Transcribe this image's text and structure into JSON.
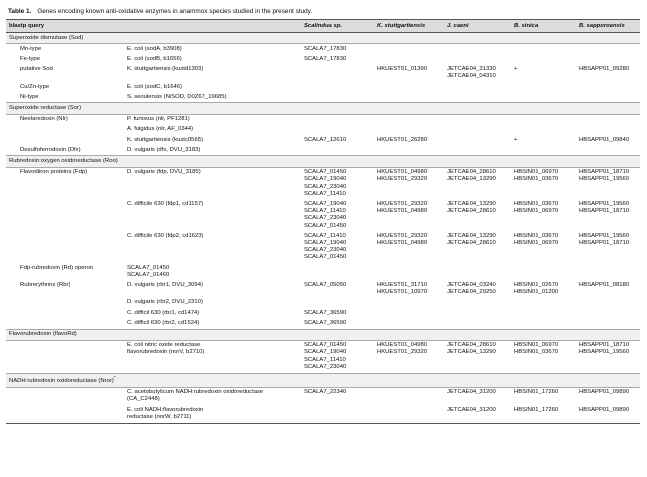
{
  "caption": {
    "label": "Table 1.",
    "text": "Genes encoding known anti-oxidative enzymes in anammox species studied in the present study."
  },
  "table": {
    "headers": [
      "blastp query",
      "Scalindua sp.",
      "K. stuttgartiensis",
      "J. caeni",
      "B. sinica",
      "B. sapporoensis"
    ],
    "rows": [
      {
        "section": "Superoxide dismutase (Sod)"
      },
      {
        "cells": [
          "Mn-type",
          "E. coli (sodA, b3908)",
          "SCALA7_17830",
          null,
          null,
          null,
          null
        ]
      },
      {
        "cells": [
          "Fe-type",
          "E. coli (sodB, b1656)",
          "SCALA7_17830",
          null,
          null,
          null,
          null
        ]
      },
      {
        "cells": [
          "putative Sod",
          "K. stuttgartiensis (kustd1303)",
          null,
          "HKUEST01_01390",
          [
            "JETCAE04_31330",
            "JETCAE04_04310"
          ],
          "+",
          "HBSAPP01_09280"
        ]
      },
      {
        "cells": [
          "Cu/Zn-type",
          "E. coli (sodC, b1646)",
          null,
          null,
          null,
          null,
          null
        ]
      },
      {
        "cells": [
          "Ni-type",
          "S. seoulensis (NiSOD, D0Z67_19685)",
          null,
          null,
          null,
          null,
          null
        ]
      },
      {
        "section": "Superoxide reductase (Sor)"
      },
      {
        "cells": [
          "Neelaredoxin (Nlr)",
          "P. furiosus (nlr, PF1281)",
          null,
          null,
          null,
          null,
          null
        ]
      },
      {
        "cells": [
          null,
          "A. fulgidus (nlr, AF_0344)",
          null,
          null,
          null,
          null,
          null
        ]
      },
      {
        "cells": [
          null,
          "K. stuttgartiensis (kustc0565)",
          "SCALA7_12610",
          "HKUEST01_26280",
          null,
          "+",
          "HBSAPP01_09840"
        ]
      },
      {
        "cells": [
          "Desulfoferrodoxin (Dfx)",
          "D. vulgaris (dfx, DVU_3183)",
          null,
          null,
          null,
          null,
          null
        ]
      },
      {
        "section": "Rubredoxin:oxygen oxidoreductase (Roo)"
      },
      {
        "cells": [
          "Flavodiiron proteins (Fdp)",
          "D. vulgaris (fdp, DVU_3185)",
          [
            "SCALA7_01450",
            "SCALA7_19040",
            "SCALA7_23040",
            "SCALA7_11410"
          ],
          [
            "HKUEST01_04980",
            "HKUEST01_29320"
          ],
          [
            "JETCAE04_28610",
            "JETCAE04_13290"
          ],
          [
            "HBSIN01_06970",
            "HBSIN01_03670"
          ],
          [
            "HBSAPP01_18710",
            "HBSAPP01_19560"
          ]
        ]
      },
      {
        "cells": [
          null,
          "C. difficile 630 (fdp1, cd1157)",
          [
            "SCALA7_19040",
            "SCALA7_11410",
            "SCALA7_23040",
            "SCALA7_01450"
          ],
          [
            "HKUEST01_29320",
            "HKUEST01_04980"
          ],
          [
            "JETCAE04_13290",
            "JETCAE04_28610"
          ],
          [
            "HBSIN01_03670",
            "HBSIN01_06970"
          ],
          [
            "HBSAPP01_19560",
            "HBSAPP01_18710"
          ]
        ]
      },
      {
        "cells": [
          null,
          "C. difficile 630 (fdp2, cd1623)",
          [
            "SCALA7_11410",
            "SCALA7_19040",
            "SCALA7_23040",
            "SCALA7_01450"
          ],
          [
            "HKUEST01_29320",
            "HKUEST01_04980"
          ],
          [
            "JETCAE04_13290",
            "JETCAE04_28610"
          ],
          [
            "HBSIN01_03670",
            "HBSIN01_06970"
          ],
          [
            "HBSAPP01_19560",
            "HBSAPP01_18710"
          ]
        ]
      },
      {
        "cells": [
          "Fdp-rubredoxin (Rd) operon",
          [
            "SCALA7_01450",
            "SCALA7_01460"
          ],
          null,
          null,
          null,
          null,
          null
        ]
      },
      {
        "cells": [
          "Rubrerythrins (Rbr)",
          "D. vulgaris (rbr1, DVU_3094)",
          "SCALA7_05050",
          [
            "HKUEST01_31710",
            "HKUEST01_10970"
          ],
          [
            "JETCAE04_03240",
            "JETCAE04_29250"
          ],
          [
            "HBSIN01_02670",
            "HBSIN01_01200"
          ],
          "HBSAPP01_08180"
        ]
      },
      {
        "cells": [
          null,
          "D. vulgaris (rbr2, DVU_2310)",
          null,
          null,
          null,
          null,
          null
        ]
      },
      {
        "cells": [
          null,
          "C. difficil 630 (rbr1, cd1474)",
          "SCALA7_36590",
          null,
          null,
          null,
          null
        ]
      },
      {
        "cells": [
          null,
          "C. difficil 630 (rbr2, cd1524)",
          "SCALA7_36590",
          null,
          null,
          null,
          null
        ]
      },
      {
        "section": "Flavorubredoxin (flavoRd)"
      },
      {
        "cells": [
          null,
          [
            "E. coli nitric oxide reductase",
            "flavorubredoxin (norV, b2710)"
          ],
          [
            "SCALA7_01450",
            "SCALA7_19040",
            "SCALA7_11410",
            "SCALA7_23040"
          ],
          [
            "HKUEST01_04980",
            "HKUEST01_29320"
          ],
          [
            "JETCAE04_28610",
            "JETCAE04_13290"
          ],
          [
            "HBSIN01_06970",
            "HBSIN01_03670"
          ],
          [
            "HBSAPP01_18710",
            "HBSAPP01_19560"
          ]
        ]
      },
      {
        "section": "NADH:rubredoxin oxidoreductase (Nror)",
        "note": "*"
      },
      {
        "cells": [
          null,
          [
            "C. acetobutylicum NADH:rubredoxin oxidoreductase",
            "(CA_C2448)"
          ],
          "SCALA7_22340",
          null,
          "JETCAE04_31200",
          "HBSIN01_17260",
          "HBSAPP01_09890"
        ]
      },
      {
        "cells": [
          null,
          [
            "E. coli NADH:flavorubredoxin",
            "reductase (norW, b2711)"
          ],
          null,
          null,
          "JETCAE04_31200",
          "HBSIN01_17260",
          "HBSAPP01_09890"
        ]
      }
    ]
  }
}
